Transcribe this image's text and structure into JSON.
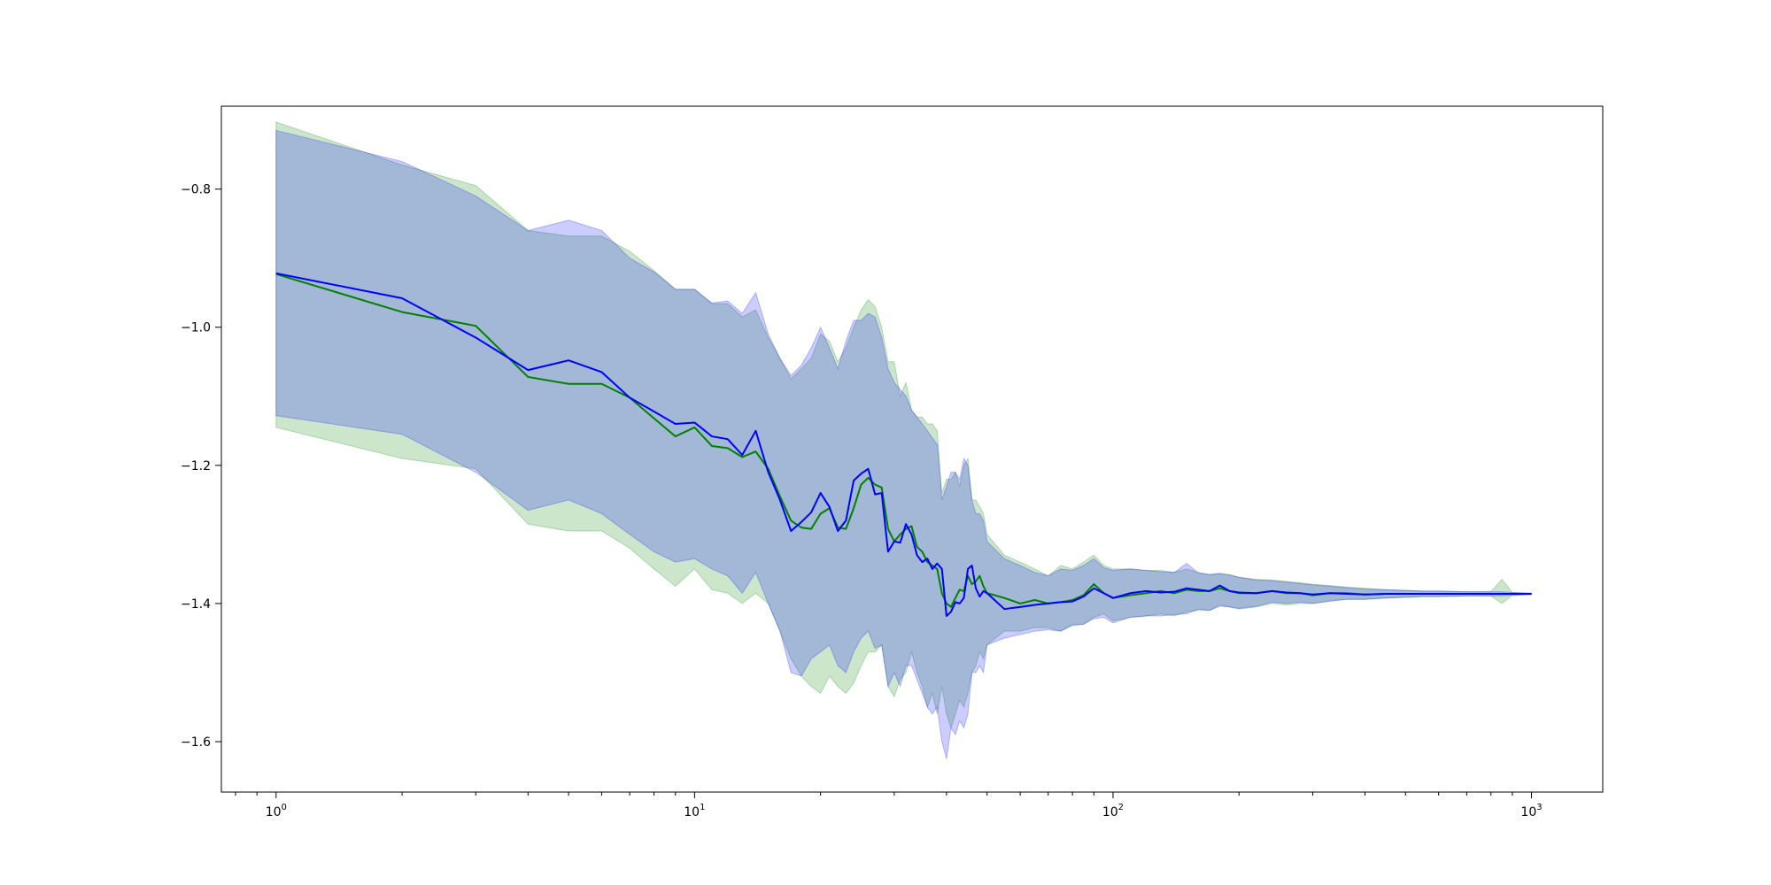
{
  "chart_data": {
    "type": "line",
    "title": "",
    "xlabel": "",
    "ylabel": "",
    "xscale": "log",
    "xlim": [
      0.74,
      1480
    ],
    "ylim": [
      -1.673,
      -0.68
    ],
    "grid": false,
    "legend": "none",
    "x_ticks": [
      {
        "value": 1,
        "base": "10",
        "exp": "0"
      },
      {
        "value": 10,
        "base": "10",
        "exp": "1"
      },
      {
        "value": 100,
        "base": "10",
        "exp": "2"
      },
      {
        "value": 1000,
        "base": "10",
        "exp": "3"
      }
    ],
    "y_ticks": [
      {
        "value": -0.8,
        "label": "−0.8"
      },
      {
        "value": -1.0,
        "label": "−1.0"
      },
      {
        "value": -1.2,
        "label": "−1.2"
      },
      {
        "value": -1.4,
        "label": "−1.4"
      },
      {
        "value": -1.6,
        "label": "−1.6"
      }
    ],
    "series": [
      {
        "color": "#008000",
        "band_color": "#008000",
        "band_opacity": 0.2,
        "x": [
          1,
          2,
          3,
          4,
          5,
          6,
          7,
          8,
          9,
          10,
          11,
          12,
          13,
          14,
          15,
          16,
          17,
          18,
          19,
          20,
          21,
          22,
          23,
          24,
          25,
          26,
          27,
          28,
          29,
          30,
          31,
          32,
          33,
          34,
          35,
          36,
          37,
          38,
          39,
          40,
          41,
          42,
          43,
          44,
          45,
          46,
          47,
          48,
          49,
          50,
          55,
          60,
          65,
          70,
          75,
          80,
          85,
          90,
          95,
          100,
          110,
          120,
          130,
          140,
          150,
          160,
          170,
          180,
          190,
          200,
          220,
          240,
          260,
          280,
          300,
          330,
          360,
          400,
          450,
          500,
          550,
          600,
          700,
          800,
          850,
          900,
          1000
        ],
        "y": [
          -0.923,
          -0.978,
          -0.998,
          -1.072,
          -1.082,
          -1.082,
          -1.102,
          -1.132,
          -1.158,
          -1.145,
          -1.172,
          -1.175,
          -1.188,
          -1.18,
          -1.205,
          -1.245,
          -1.28,
          -1.29,
          -1.292,
          -1.27,
          -1.262,
          -1.29,
          -1.292,
          -1.262,
          -1.228,
          -1.218,
          -1.228,
          -1.232,
          -1.292,
          -1.31,
          -1.3,
          -1.292,
          -1.288,
          -1.318,
          -1.325,
          -1.34,
          -1.345,
          -1.35,
          -1.385,
          -1.4,
          -1.405,
          -1.392,
          -1.38,
          -1.382,
          -1.36,
          -1.372,
          -1.368,
          -1.36,
          -1.375,
          -1.385,
          -1.392,
          -1.4,
          -1.395,
          -1.4,
          -1.398,
          -1.395,
          -1.388,
          -1.372,
          -1.385,
          -1.392,
          -1.388,
          -1.385,
          -1.382,
          -1.385,
          -1.38,
          -1.382,
          -1.382,
          -1.378,
          -1.382,
          -1.385,
          -1.385,
          -1.382,
          -1.385,
          -1.385,
          -1.388,
          -1.385,
          -1.385,
          -1.387,
          -1.386,
          -1.386,
          -1.386,
          -1.386,
          -1.386,
          -1.386,
          -1.386,
          -1.386,
          -1.386
        ],
        "upper": [
          -0.703,
          -0.765,
          -0.795,
          -0.86,
          -0.868,
          -0.868,
          -0.89,
          -0.918,
          -0.945,
          -0.945,
          -0.966,
          -0.966,
          -0.985,
          -0.975,
          -1.015,
          -1.045,
          -1.075,
          -1.06,
          -1.045,
          -1.01,
          -1.02,
          -1.05,
          -1.03,
          -1.0,
          -0.975,
          -0.96,
          -0.97,
          -1.0,
          -1.05,
          -1.05,
          -1.1,
          -1.08,
          -1.12,
          -1.13,
          -1.13,
          -1.14,
          -1.14,
          -1.15,
          -1.24,
          -1.22,
          -1.22,
          -1.21,
          -1.23,
          -1.2,
          -1.19,
          -1.25,
          -1.25,
          -1.26,
          -1.27,
          -1.3,
          -1.33,
          -1.34,
          -1.35,
          -1.36,
          -1.345,
          -1.35,
          -1.34,
          -1.33,
          -1.345,
          -1.35,
          -1.35,
          -1.352,
          -1.352,
          -1.355,
          -1.35,
          -1.355,
          -1.358,
          -1.356,
          -1.358,
          -1.362,
          -1.365,
          -1.366,
          -1.368,
          -1.37,
          -1.372,
          -1.374,
          -1.376,
          -1.378,
          -1.38,
          -1.381,
          -1.382,
          -1.382,
          -1.383,
          -1.383,
          -1.365,
          -1.384,
          -1.385
        ],
        "lower": [
          -1.145,
          -1.19,
          -1.205,
          -1.285,
          -1.295,
          -1.295,
          -1.32,
          -1.35,
          -1.375,
          -1.35,
          -1.38,
          -1.385,
          -1.4,
          -1.385,
          -1.4,
          -1.44,
          -1.48,
          -1.505,
          -1.52,
          -1.53,
          -1.505,
          -1.52,
          -1.53,
          -1.515,
          -1.49,
          -1.47,
          -1.47,
          -1.46,
          -1.52,
          -1.535,
          -1.51,
          -1.5,
          -1.47,
          -1.5,
          -1.52,
          -1.55,
          -1.53,
          -1.56,
          -1.52,
          -1.56,
          -1.58,
          -1.56,
          -1.54,
          -1.55,
          -1.53,
          -1.5,
          -1.49,
          -1.47,
          -1.48,
          -1.46,
          -1.44,
          -1.44,
          -1.435,
          -1.435,
          -1.44,
          -1.43,
          -1.43,
          -1.42,
          -1.415,
          -1.425,
          -1.42,
          -1.418,
          -1.415,
          -1.418,
          -1.412,
          -1.41,
          -1.41,
          -1.402,
          -1.405,
          -1.408,
          -1.405,
          -1.4,
          -1.402,
          -1.4,
          -1.4,
          -1.397,
          -1.394,
          -1.394,
          -1.392,
          -1.391,
          -1.39,
          -1.39,
          -1.389,
          -1.389,
          -1.4,
          -1.388,
          -1.387
        ]
      },
      {
        "color": "#0000ff",
        "band_color": "#0000ff",
        "band_opacity": 0.2,
        "x": [
          1,
          2,
          3,
          4,
          5,
          6,
          7,
          8,
          9,
          10,
          11,
          12,
          13,
          14,
          15,
          16,
          17,
          18,
          19,
          20,
          21,
          22,
          23,
          24,
          25,
          26,
          27,
          28,
          29,
          30,
          31,
          32,
          33,
          34,
          35,
          36,
          37,
          38,
          39,
          40,
          41,
          42,
          43,
          44,
          45,
          46,
          47,
          48,
          49,
          50,
          55,
          60,
          65,
          70,
          75,
          80,
          85,
          90,
          95,
          100,
          110,
          120,
          130,
          140,
          150,
          160,
          170,
          180,
          190,
          200,
          220,
          240,
          260,
          280,
          300,
          330,
          360,
          400,
          450,
          500,
          550,
          600,
          700,
          800,
          850,
          900,
          1000
        ],
        "y": [
          -0.922,
          -0.958,
          -1.015,
          -1.062,
          -1.048,
          -1.065,
          -1.102,
          -1.122,
          -1.14,
          -1.138,
          -1.158,
          -1.162,
          -1.185,
          -1.15,
          -1.21,
          -1.25,
          -1.295,
          -1.282,
          -1.268,
          -1.24,
          -1.26,
          -1.295,
          -1.28,
          -1.222,
          -1.212,
          -1.205,
          -1.242,
          -1.24,
          -1.325,
          -1.31,
          -1.312,
          -1.285,
          -1.3,
          -1.33,
          -1.34,
          -1.335,
          -1.35,
          -1.342,
          -1.35,
          -1.418,
          -1.412,
          -1.398,
          -1.4,
          -1.392,
          -1.35,
          -1.345,
          -1.378,
          -1.39,
          -1.382,
          -1.385,
          -1.408,
          -1.405,
          -1.402,
          -1.4,
          -1.398,
          -1.397,
          -1.39,
          -1.378,
          -1.385,
          -1.392,
          -1.385,
          -1.382,
          -1.384,
          -1.383,
          -1.378,
          -1.38,
          -1.382,
          -1.374,
          -1.382,
          -1.384,
          -1.385,
          -1.382,
          -1.384,
          -1.385,
          -1.387,
          -1.385,
          -1.386,
          -1.387,
          -1.386,
          -1.386,
          -1.386,
          -1.386,
          -1.386,
          -1.386,
          -1.386,
          -1.386,
          -1.386
        ],
        "upper": [
          -0.715,
          -0.76,
          -0.81,
          -0.86,
          -0.845,
          -0.86,
          -0.9,
          -0.92,
          -0.945,
          -0.945,
          -0.965,
          -0.962,
          -0.98,
          -0.95,
          -1.01,
          -1.045,
          -1.07,
          -1.055,
          -1.03,
          -1.0,
          -1.03,
          -1.06,
          -1.02,
          -0.99,
          -0.99,
          -0.98,
          -0.985,
          -1.015,
          -1.06,
          -1.08,
          -1.09,
          -1.1,
          -1.12,
          -1.13,
          -1.14,
          -1.15,
          -1.16,
          -1.17,
          -1.25,
          -1.23,
          -1.21,
          -1.21,
          -1.22,
          -1.19,
          -1.2,
          -1.25,
          -1.27,
          -1.27,
          -1.28,
          -1.31,
          -1.335,
          -1.345,
          -1.355,
          -1.36,
          -1.35,
          -1.352,
          -1.345,
          -1.335,
          -1.348,
          -1.352,
          -1.35,
          -1.352,
          -1.354,
          -1.355,
          -1.342,
          -1.356,
          -1.358,
          -1.357,
          -1.359,
          -1.362,
          -1.366,
          -1.367,
          -1.369,
          -1.371,
          -1.373,
          -1.375,
          -1.377,
          -1.379,
          -1.38,
          -1.381,
          -1.382,
          -1.382,
          -1.383,
          -1.383,
          -1.383,
          -1.384,
          -1.385
        ],
        "lower": [
          -1.128,
          -1.155,
          -1.21,
          -1.265,
          -1.25,
          -1.27,
          -1.3,
          -1.325,
          -1.34,
          -1.335,
          -1.35,
          -1.36,
          -1.385,
          -1.355,
          -1.4,
          -1.44,
          -1.5,
          -1.505,
          -1.48,
          -1.47,
          -1.46,
          -1.49,
          -1.5,
          -1.47,
          -1.45,
          -1.44,
          -1.465,
          -1.46,
          -1.52,
          -1.5,
          -1.52,
          -1.49,
          -1.49,
          -1.51,
          -1.53,
          -1.55,
          -1.56,
          -1.55,
          -1.6,
          -1.625,
          -1.58,
          -1.59,
          -1.57,
          -1.58,
          -1.56,
          -1.5,
          -1.5,
          -1.49,
          -1.5,
          -1.46,
          -1.45,
          -1.445,
          -1.44,
          -1.438,
          -1.44,
          -1.432,
          -1.43,
          -1.422,
          -1.42,
          -1.428,
          -1.42,
          -1.418,
          -1.418,
          -1.416,
          -1.415,
          -1.408,
          -1.41,
          -1.404,
          -1.405,
          -1.407,
          -1.404,
          -1.398,
          -1.4,
          -1.398,
          -1.4,
          -1.396,
          -1.394,
          -1.394,
          -1.392,
          -1.391,
          -1.39,
          -1.39,
          -1.389,
          -1.389,
          -1.389,
          -1.388,
          -1.387
        ]
      }
    ]
  }
}
